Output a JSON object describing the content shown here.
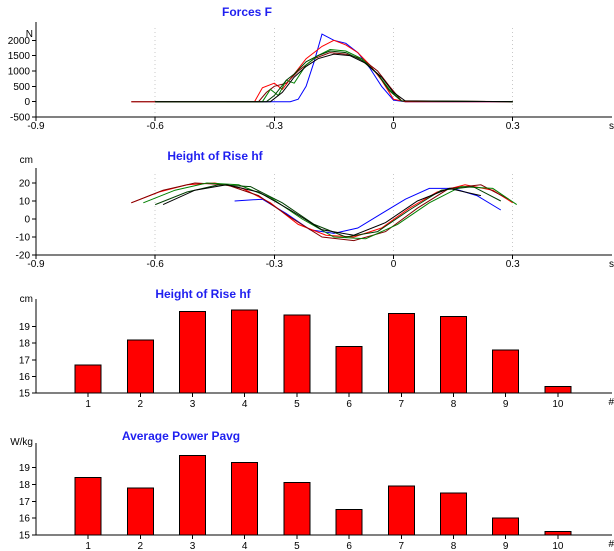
{
  "chart_data": [
    {
      "type": "line",
      "title": "Forces F",
      "ylabel": "N",
      "xlabel": "s",
      "xlim": [
        -0.9,
        0.55
      ],
      "ylim": [
        -500,
        2400
      ],
      "x_ticks": [
        "-0.9",
        "-0.6",
        "-0.3",
        "0",
        "0.3"
      ],
      "y_ticks": [
        "-500",
        "0",
        "500",
        "1000",
        "1500",
        "2000"
      ],
      "grid": "vertical dotted",
      "series": [
        {
          "color": "#0000ff",
          "x": [
            -0.42,
            -0.3,
            -0.26,
            -0.24,
            -0.22,
            -0.2,
            -0.18,
            -0.15,
            -0.12,
            -0.09,
            -0.06,
            -0.03,
            0.0,
            0.03,
            0.1,
            0.3
          ],
          "y": [
            0,
            0,
            0,
            80,
            500,
            1300,
            2200,
            2000,
            1900,
            1600,
            1100,
            500,
            50,
            0,
            0,
            0
          ]
        },
        {
          "color": "#ff0000",
          "x": [
            -0.66,
            -0.35,
            -0.33,
            -0.3,
            -0.28,
            -0.25,
            -0.22,
            -0.18,
            -0.15,
            -0.12,
            -0.09,
            -0.06,
            -0.03,
            0.0,
            0.03,
            0.3
          ],
          "y": [
            0,
            0,
            450,
            600,
            400,
            900,
            1400,
            1800,
            2000,
            1850,
            1600,
            1200,
            700,
            80,
            0,
            0
          ]
        },
        {
          "color": "#800000",
          "x": [
            -0.66,
            -0.34,
            -0.32,
            -0.3,
            -0.27,
            -0.24,
            -0.2,
            -0.16,
            -0.12,
            -0.08,
            -0.04,
            -0.01,
            0.02,
            0.3
          ],
          "y": [
            0,
            0,
            300,
            500,
            600,
            1000,
            1400,
            1600,
            1550,
            1400,
            1000,
            500,
            30,
            0
          ]
        },
        {
          "color": "#008000",
          "x": [
            -0.6,
            -0.33,
            -0.31,
            -0.29,
            -0.27,
            -0.25,
            -0.22,
            -0.19,
            -0.16,
            -0.12,
            -0.08,
            -0.04,
            -0.01,
            0.02,
            0.3
          ],
          "y": [
            0,
            0,
            400,
            200,
            700,
            600,
            1200,
            1500,
            1700,
            1650,
            1400,
            900,
            400,
            20,
            0
          ]
        },
        {
          "color": "#004000",
          "x": [
            -0.6,
            -0.32,
            -0.3,
            -0.27,
            -0.25,
            -0.22,
            -0.19,
            -0.16,
            -0.12,
            -0.08,
            -0.04,
            -0.01,
            0.02,
            0.3
          ],
          "y": [
            0,
            0,
            200,
            700,
            900,
            1300,
            1500,
            1650,
            1600,
            1350,
            900,
            350,
            20,
            0
          ]
        },
        {
          "color": "#000000",
          "x": [
            -0.6,
            -0.31,
            -0.28,
            -0.25,
            -0.22,
            -0.19,
            -0.15,
            -0.11,
            -0.07,
            -0.03,
            0.0,
            0.03,
            0.3
          ],
          "y": [
            0,
            0,
            300,
            800,
            1150,
            1400,
            1550,
            1500,
            1250,
            800,
            300,
            20,
            0
          ]
        }
      ]
    },
    {
      "type": "line",
      "title": "Height of Rise hf",
      "ylabel": "cm",
      "xlabel": "s",
      "xlim": [
        -0.9,
        0.55
      ],
      "ylim": [
        -20,
        25
      ],
      "x_ticks": [
        "-0.9",
        "-0.6",
        "-0.3",
        "0",
        "0.3"
      ],
      "y_ticks": [
        "-20",
        "-10",
        "0",
        "10",
        "20"
      ],
      "grid": "vertical dotted",
      "series": [
        {
          "color": "#0000ff",
          "x": [
            -0.4,
            -0.33,
            -0.27,
            -0.21,
            -0.15,
            -0.09,
            -0.03,
            0.03,
            0.09,
            0.15,
            0.21,
            0.27
          ],
          "y": [
            10,
            11,
            3,
            -6,
            -8,
            -5,
            3,
            11,
            17,
            17,
            13,
            5
          ]
        },
        {
          "color": "#ff0000",
          "x": [
            -0.66,
            -0.59,
            -0.52,
            -0.45,
            -0.38,
            -0.31,
            -0.24,
            -0.17,
            -0.1,
            -0.03,
            0.04,
            0.11,
            0.18,
            0.25,
            0.3
          ],
          "y": [
            9,
            15,
            19,
            20,
            17,
            9,
            -3,
            -9,
            -10,
            -5,
            6,
            15,
            19,
            16,
            9
          ]
        },
        {
          "color": "#800000",
          "x": [
            -0.66,
            -0.58,
            -0.5,
            -0.42,
            -0.34,
            -0.26,
            -0.18,
            -0.1,
            -0.02,
            0.06,
            0.14,
            0.22,
            0.29
          ],
          "y": [
            9,
            16,
            20,
            19,
            13,
            1,
            -10,
            -12,
            -7,
            6,
            17,
            19,
            11
          ]
        },
        {
          "color": "#008000",
          "x": [
            -0.63,
            -0.55,
            -0.47,
            -0.39,
            -0.31,
            -0.23,
            -0.15,
            -0.07,
            0.01,
            0.09,
            0.17,
            0.25,
            0.31
          ],
          "y": [
            9,
            16,
            20,
            19,
            12,
            0,
            -10,
            -11,
            -3,
            9,
            18,
            17,
            8
          ]
        },
        {
          "color": "#004000",
          "x": [
            -0.6,
            -0.52,
            -0.44,
            -0.36,
            -0.28,
            -0.2,
            -0.12,
            -0.04,
            0.04,
            0.12,
            0.2,
            0.27
          ],
          "y": [
            8,
            15,
            19,
            18,
            9,
            -3,
            -10,
            -7,
            5,
            16,
            18,
            10
          ]
        },
        {
          "color": "#000000",
          "x": [
            -0.58,
            -0.5,
            -0.42,
            -0.34,
            -0.26,
            -0.18,
            -0.1,
            -0.02,
            0.06,
            0.14,
            0.22
          ],
          "y": [
            8,
            16,
            19,
            15,
            5,
            -6,
            -9,
            -2,
            10,
            17,
            13
          ]
        }
      ]
    },
    {
      "type": "bar",
      "title": "Height of Rise hf",
      "ylabel": "cm",
      "xlabel": "#",
      "categories": [
        "1",
        "2",
        "3",
        "4",
        "5",
        "6",
        "7",
        "8",
        "9",
        "10"
      ],
      "values": [
        16.7,
        18.2,
        19.9,
        20.0,
        19.7,
        17.8,
        19.8,
        19.6,
        17.6,
        15.4
      ],
      "ylim": [
        15,
        20.3
      ],
      "y_ticks": [
        "15",
        "16",
        "17",
        "18",
        "19"
      ],
      "bar_color": "#ff0000"
    },
    {
      "type": "bar",
      "title": "Average Power Pavg",
      "ylabel": "W/kg",
      "xlabel": "#",
      "categories": [
        "1",
        "2",
        "3",
        "4",
        "5",
        "6",
        "7",
        "8",
        "9",
        "10"
      ],
      "values": [
        18.4,
        17.8,
        19.7,
        19.3,
        18.1,
        16.5,
        17.9,
        17.5,
        16.0,
        15.2
      ],
      "ylim": [
        15,
        20.1
      ],
      "y_ticks": [
        "15",
        "16",
        "17",
        "18",
        "19"
      ],
      "bar_color": "#ff0000"
    }
  ]
}
